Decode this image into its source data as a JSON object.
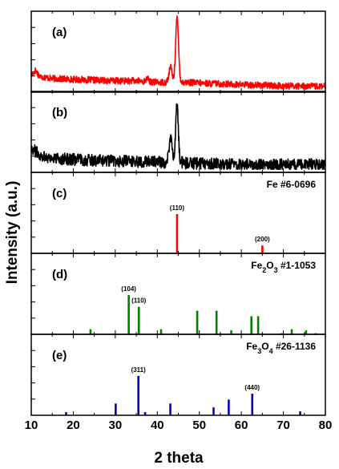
{
  "chart_data": {
    "type": "line",
    "xlabel": "2 theta",
    "ylabel": "Intensity (a.u.)",
    "xlim": [
      10,
      80
    ],
    "x_ticks": [
      10,
      20,
      30,
      40,
      50,
      60,
      70,
      80
    ],
    "panels": [
      {
        "label": "(a)",
        "kind": "pattern",
        "color": "#ff0000",
        "baseline": [
          [
            10,
            0.2
          ],
          [
            11,
            0.26
          ],
          [
            12,
            0.18
          ],
          [
            15,
            0.15
          ],
          [
            20,
            0.14
          ],
          [
            25,
            0.13
          ],
          [
            30,
            0.12
          ],
          [
            35,
            0.12
          ],
          [
            38,
            0.11
          ],
          [
            40,
            0.1
          ],
          [
            42,
            0.1
          ],
          [
            43,
            0.18
          ],
          [
            44,
            0.1
          ],
          [
            47,
            0.1
          ],
          [
            50,
            0.09
          ],
          [
            55,
            0.08
          ],
          [
            60,
            0.07
          ],
          [
            65,
            0.06
          ],
          [
            70,
            0.05
          ],
          [
            75,
            0.05
          ],
          [
            80,
            0.04
          ]
        ],
        "noise": 0.045,
        "peaks": [
          {
            "x": 44.7,
            "h": 0.86,
            "w": 0.35
          },
          {
            "x": 43.2,
            "h": 0.14,
            "w": 0.3
          },
          {
            "x": 37.6,
            "h": 0.06,
            "w": 0.2
          }
        ]
      },
      {
        "label": "(b)",
        "kind": "pattern",
        "color": "#000000",
        "baseline": [
          [
            10,
            0.3
          ],
          [
            12,
            0.2
          ],
          [
            15,
            0.16
          ],
          [
            20,
            0.14
          ],
          [
            30,
            0.12
          ],
          [
            40,
            0.11
          ],
          [
            42,
            0.1
          ],
          [
            43,
            0.25
          ],
          [
            44,
            0.12
          ],
          [
            47,
            0.09
          ],
          [
            55,
            0.08
          ],
          [
            65,
            0.07
          ],
          [
            75,
            0.07
          ],
          [
            80,
            0.08
          ]
        ],
        "noise": 0.08,
        "peaks": [
          {
            "x": 44.7,
            "h": 0.78,
            "w": 0.3
          },
          {
            "x": 43.3,
            "h": 0.24,
            "w": 0.25
          }
        ]
      },
      {
        "label": "(c)",
        "kind": "reference",
        "title_parts": [
          {
            "t": "Fe #6-0696"
          }
        ],
        "color": "#ff0000",
        "lines": [
          {
            "x": 44.7,
            "i": 100,
            "hkl": "(110)"
          },
          {
            "x": 65.0,
            "i": 20,
            "hkl": "(200)"
          }
        ]
      },
      {
        "label": "(d)",
        "kind": "reference",
        "title_parts": [
          {
            "t": "Fe"
          },
          {
            "t": "2",
            "sub": true
          },
          {
            "t": "O"
          },
          {
            "t": "3",
            "sub": true
          },
          {
            "t": " #1-1053"
          }
        ],
        "color": "#008000",
        "lines": [
          {
            "x": 24.1,
            "i": 13
          },
          {
            "x": 33.2,
            "i": 100,
            "hkl": "(104)"
          },
          {
            "x": 35.6,
            "i": 70,
            "hkl": "(110)"
          },
          {
            "x": 40.9,
            "i": 13
          },
          {
            "x": 49.5,
            "i": 60
          },
          {
            "x": 54.1,
            "i": 60
          },
          {
            "x": 57.6,
            "i": 10
          },
          {
            "x": 62.4,
            "i": 46
          },
          {
            "x": 64.0,
            "i": 46
          },
          {
            "x": 69.6,
            "i": 3
          },
          {
            "x": 72.0,
            "i": 13
          },
          {
            "x": 75.4,
            "i": 10
          },
          {
            "x": 77.7,
            "i": 3
          }
        ]
      },
      {
        "label": "(e)",
        "kind": "reference",
        "title_parts": [
          {
            "t": "Fe"
          },
          {
            "t": "3",
            "sub": true
          },
          {
            "t": "O"
          },
          {
            "t": "4",
            "sub": true
          },
          {
            "t": " #26-1136"
          }
        ],
        "color": "#0000cc",
        "lines": [
          {
            "x": 18.3,
            "i": 8
          },
          {
            "x": 30.1,
            "i": 30
          },
          {
            "x": 35.5,
            "i": 100,
            "hkl": "(311)"
          },
          {
            "x": 37.1,
            "i": 8
          },
          {
            "x": 43.1,
            "i": 30
          },
          {
            "x": 53.4,
            "i": 20
          },
          {
            "x": 57.0,
            "i": 40
          },
          {
            "x": 62.6,
            "i": 55,
            "hkl": "(440)"
          },
          {
            "x": 74.0,
            "i": 10
          }
        ]
      }
    ]
  }
}
